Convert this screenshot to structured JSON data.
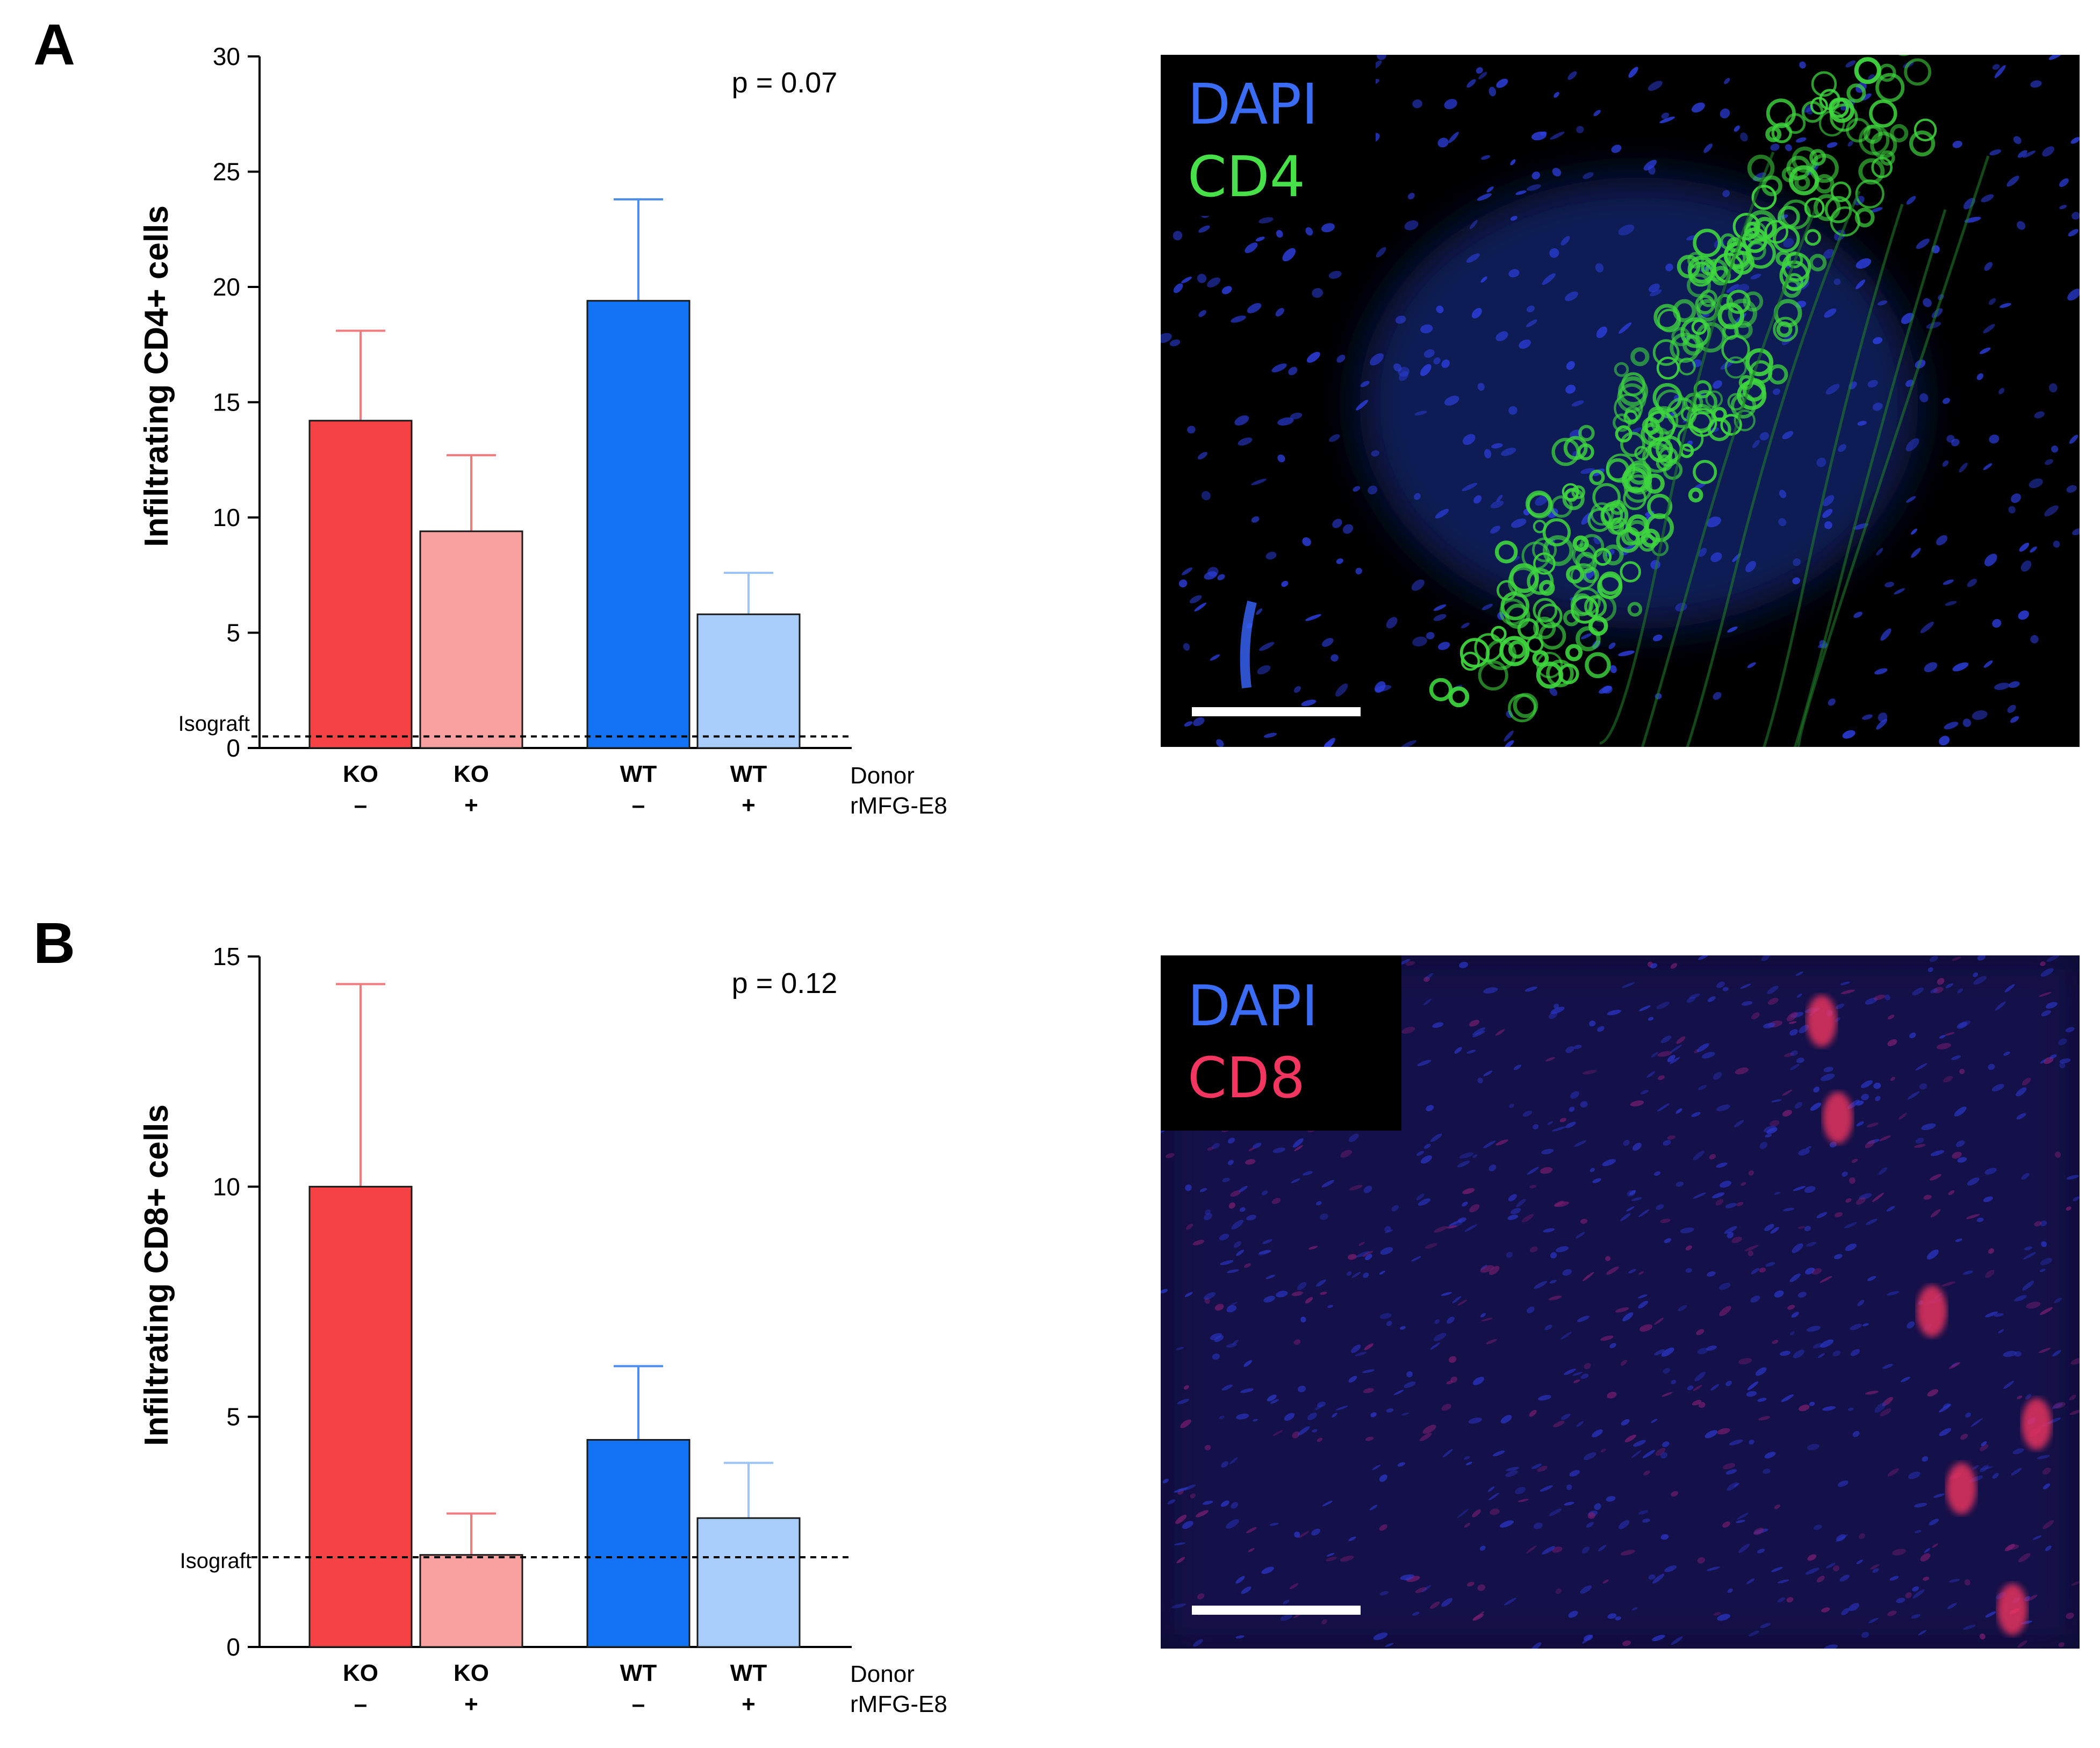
{
  "panels": [
    {
      "letter": "A",
      "p_value": "p = 0.07",
      "isograft_label": "Isograft",
      "micro_labels": [
        "DAPI",
        "CD4"
      ],
      "row_labels": [
        "Donor",
        "rMFG-E8"
      ],
      "colors": {
        "ko_minus": "#f44245",
        "ko_plus": "#f9a0a1",
        "wt_minus": "#1274f4",
        "wt_plus": "#a9cdfa",
        "ko_minus_err": "#f07a7c",
        "ko_plus_err": "#f07a7c",
        "wt_minus_err": "#4a8ff0",
        "wt_plus_err": "#9cc4f5",
        "dapi": "#3b6cf5",
        "stain": "#48e048",
        "background": "#000000"
      }
    },
    {
      "letter": "B",
      "p_value": "p = 0.12",
      "isograft_label": "Isograft",
      "micro_labels": [
        "DAPI",
        "CD8"
      ],
      "row_labels": [
        "Donor",
        "rMFG-E8"
      ],
      "colors": {
        "ko_minus": "#f44245",
        "ko_plus": "#f9a0a1",
        "wt_minus": "#1274f4",
        "wt_plus": "#a9cdfa",
        "ko_minus_err": "#f07a7c",
        "ko_plus_err": "#f07a7c",
        "wt_minus_err": "#4a8ff0",
        "wt_plus_err": "#9cc4f5",
        "dapi": "#3b6cf5",
        "stain": "#f2365f",
        "background": "#0a0a2a"
      }
    }
  ],
  "chart_data": [
    {
      "type": "bar",
      "ylabel": "Infiltrating CD4+ cells",
      "ylim": [
        0,
        30
      ],
      "yticks": [
        0,
        5,
        10,
        15,
        20,
        25,
        30
      ],
      "categories": [
        {
          "donor": "KO",
          "rmfg": "–"
        },
        {
          "donor": "KO",
          "rmfg": "+"
        },
        {
          "donor": "WT",
          "rmfg": "–"
        },
        {
          "donor": "WT",
          "rmfg": "+"
        }
      ],
      "values": [
        14.2,
        9.4,
        19.4,
        5.8
      ],
      "error_upper": [
        18.1,
        12.7,
        23.8,
        7.6
      ],
      "isograft": 0.5,
      "grid": false
    },
    {
      "type": "bar",
      "ylabel": "Infiltrating CD8+ cells",
      "ylim": [
        0,
        15
      ],
      "yticks": [
        0,
        5,
        10,
        15
      ],
      "categories": [
        {
          "donor": "KO",
          "rmfg": "–"
        },
        {
          "donor": "KO",
          "rmfg": "+"
        },
        {
          "donor": "WT",
          "rmfg": "–"
        },
        {
          "donor": "WT",
          "rmfg": "+"
        }
      ],
      "values": [
        10.0,
        2.0,
        4.5,
        2.8
      ],
      "error_upper": [
        14.4,
        2.9,
        6.1,
        4.0
      ],
      "isograft": 1.95,
      "grid": false
    }
  ]
}
